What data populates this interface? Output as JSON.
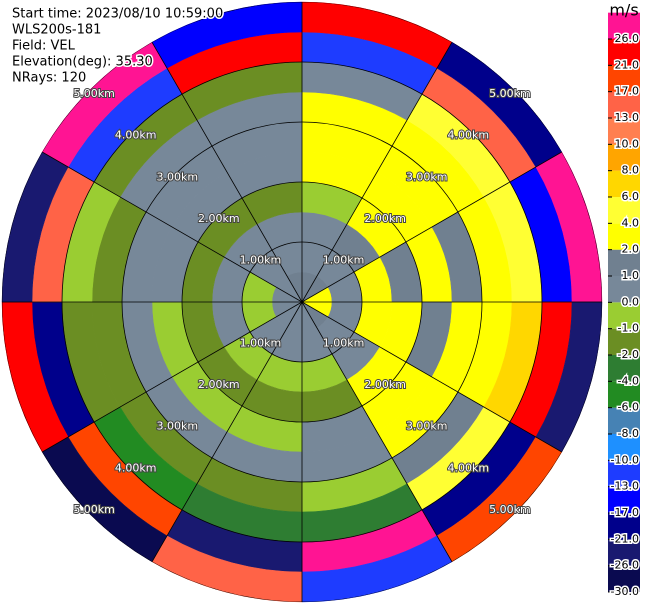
{
  "chart_data": {
    "type": "ppi",
    "header": [
      "Start time: 2023/08/10 10:59:00",
      "WLS200s-181",
      "Field: VEL",
      "Elevation(deg): 35.30",
      "NRays: 120"
    ],
    "azimuths": [
      0,
      30,
      60,
      90,
      120,
      150,
      180,
      210,
      240,
      270,
      300,
      330
    ],
    "ranges": [
      0,
      0.5,
      1,
      1.5,
      2,
      2.5,
      3,
      3.5,
      4,
      4.5,
      5
    ],
    "rlim": [
      0,
      5
    ],
    "values": [
      [
        1,
        0,
        0,
        -1,
        2,
        2,
        2,
        0,
        -13,
        21
      ],
      [
        1,
        0,
        1,
        2,
        2,
        2,
        2,
        4,
        13,
        -21
      ],
      [
        2,
        0,
        2,
        1,
        2,
        1,
        2,
        4,
        -17,
        26
      ],
      [
        2,
        0,
        2,
        2,
        1,
        2,
        2,
        6,
        21,
        -26
      ],
      [
        1,
        0,
        0,
        2,
        2,
        2,
        1,
        4,
        -21,
        17
      ],
      [
        0,
        0,
        -1,
        -2,
        0,
        0,
        -1,
        -4,
        26,
        -13
      ],
      [
        0,
        0,
        -1,
        -2,
        -1,
        0,
        -2,
        -4,
        -26,
        13
      ],
      [
        0,
        0,
        -1,
        -2,
        -1,
        0,
        -2,
        -6,
        17,
        -30
      ],
      [
        0,
        -1,
        0,
        -2,
        -1,
        0,
        -2,
        -2,
        -21,
        21
      ],
      [
        0,
        -1,
        0,
        -2,
        0,
        0,
        -2,
        -1,
        13,
        -26
      ],
      [
        0,
        0,
        0,
        -2,
        0,
        0,
        0,
        -2,
        -13,
        26
      ],
      [
        1,
        0,
        0,
        -2,
        0,
        0,
        0,
        -2,
        21,
        -17
      ]
    ],
    "range_rings": [
      {
        "value": 1,
        "label": "1.00km"
      },
      {
        "value": 2,
        "label": "2.00km"
      },
      {
        "value": 3,
        "label": "3.00km"
      },
      {
        "value": 4,
        "label": "4.00km"
      },
      {
        "value": 5,
        "label": "5.00km"
      }
    ],
    "colorbar": {
      "label": "m/s",
      "vlim": [
        -30,
        30
      ],
      "ticks": [
        {
          "value": -30,
          "label": "-30.0"
        },
        {
          "value": -26,
          "label": "-26.0"
        },
        {
          "value": -21,
          "label": "-21.0"
        },
        {
          "value": -17,
          "label": "-17.0"
        },
        {
          "value": -13,
          "label": "-13.0"
        },
        {
          "value": -10,
          "label": "-10.0"
        },
        {
          "value": -8,
          "label": "-8.0"
        },
        {
          "value": -6,
          "label": "-6.0"
        },
        {
          "value": -4,
          "label": "-4.0"
        },
        {
          "value": -2,
          "label": "-2.0"
        },
        {
          "value": -1,
          "label": "-1.0"
        },
        {
          "value": 0,
          "label": "0.0"
        },
        {
          "value": 1,
          "label": "1.0"
        },
        {
          "value": 2,
          "label": "2.0"
        },
        {
          "value": 4,
          "label": "4.0"
        },
        {
          "value": 6,
          "label": "6.0"
        },
        {
          "value": 8,
          "label": "8.0"
        },
        {
          "value": 10,
          "label": "10.0"
        },
        {
          "value": 13,
          "label": "13.0"
        },
        {
          "value": 17,
          "label": "17.0"
        },
        {
          "value": 21,
          "label": "21.0"
        },
        {
          "value": 26,
          "label": "26.0"
        }
      ],
      "colors": [
        "#0a0a50",
        "#191970",
        "#00008b",
        "#0000ff",
        "#1e3cff",
        "#1e90ff",
        "#4682b4",
        "#228b22",
        "#2e7d32",
        "#6b8e23",
        "#9acd32",
        "#778899",
        "#708090",
        "#ffff00",
        "#ffff33",
        "#ffd700",
        "#ffa500",
        "#ff7f50",
        "#ff6347",
        "#ff4500",
        "#ff0000",
        "#ff1493"
      ]
    }
  }
}
